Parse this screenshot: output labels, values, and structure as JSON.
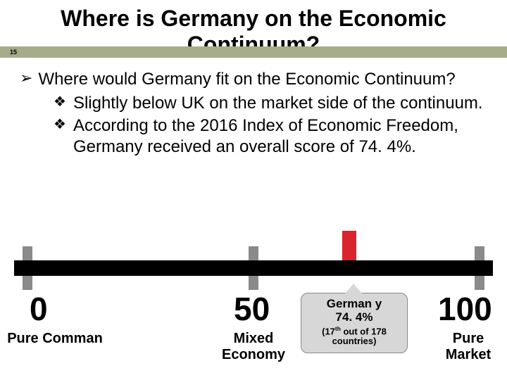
{
  "slide": {
    "number": "15",
    "title": "Where is Germany on the Economic Continuum?",
    "bullet1": "Where would Germany fit on the Economic Continuum?",
    "sub1": "Slightly below UK on the market side of the continuum.",
    "sub2": "According to the 2016 Index of Economic Freedom, Germany received an overall score of 74. 4%.",
    "accent_bar_color": "#a6ab8a"
  },
  "continuum": {
    "type": "number-line",
    "range": [
      0,
      100
    ],
    "ticks": [
      0,
      50,
      100
    ],
    "marker_value": 74.4,
    "marker_color": "#d9232d",
    "tick_color": "#8a8a8a",
    "line_color": "#000000",
    "labels": {
      "n0": "0",
      "n50": "50",
      "n100": "100",
      "l0": "Pure Comman",
      "l50": "Mixed Economy",
      "l100": "Pure Market"
    },
    "callout": {
      "title": "German y",
      "pct": "74. 4%",
      "rank_prefix": "(17",
      "rank_suffix": " out of 178 countries)",
      "rank_ordinal": "th",
      "background": "#d7d7d7"
    }
  }
}
